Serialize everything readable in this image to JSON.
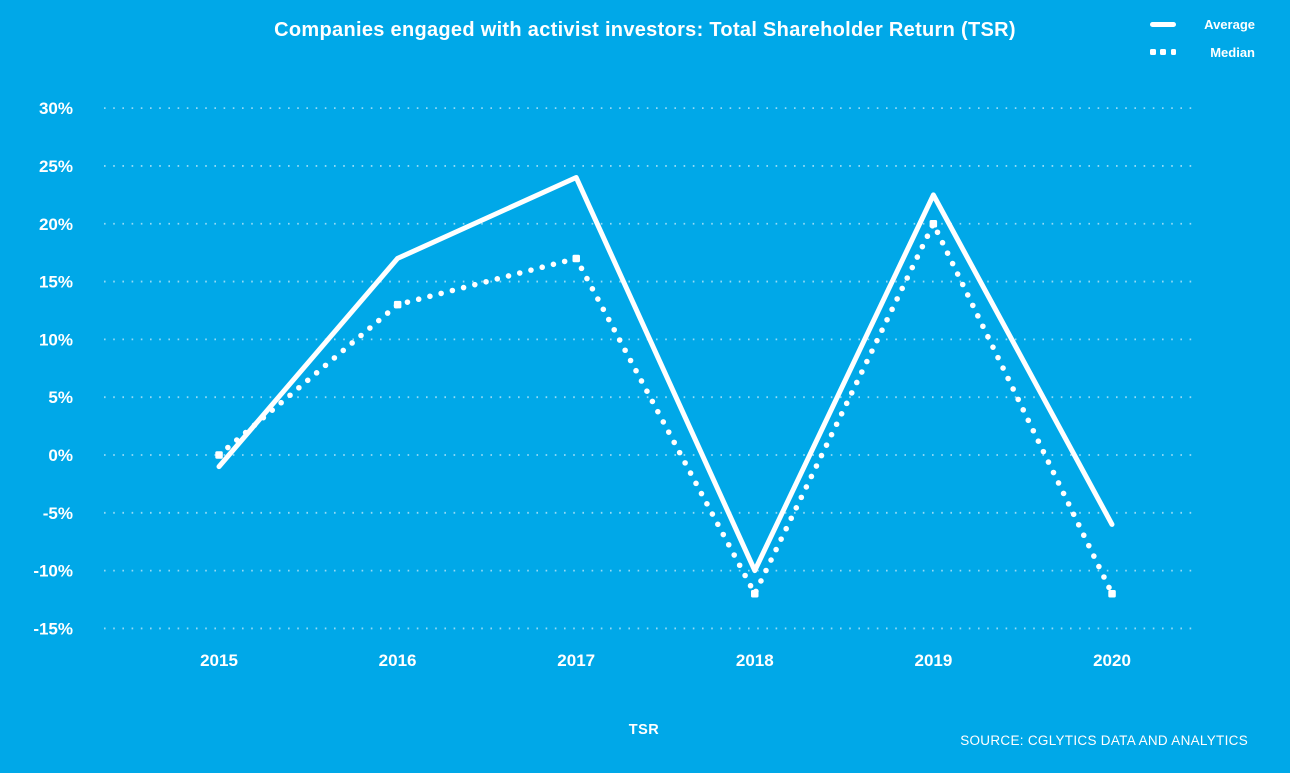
{
  "colors": {
    "background": "#00a8e8",
    "foreground": "#ffffff",
    "gridline": "rgba(255,255,255,0.58)"
  },
  "header": {
    "title": "Companies engaged with activist investors: Total Shareholder Return (TSR)"
  },
  "legend": {
    "position": "top-right",
    "items": [
      {
        "label": "Average",
        "style": "solid"
      },
      {
        "label": "Median",
        "style": "dotted"
      }
    ]
  },
  "footer": {
    "xlabel": "TSR",
    "source": "SOURCE: CGLYTICS DATA AND ANALYTICS"
  },
  "chart_data": {
    "type": "line",
    "title": "Companies engaged with activist investors: Total Shareholder Return (TSR)",
    "categories": [
      "2015",
      "2016",
      "2017",
      "2018",
      "2019",
      "2020"
    ],
    "series": [
      {
        "name": "Average",
        "style": "solid",
        "values": [
          -1,
          17,
          24,
          -10,
          22.5,
          -6
        ]
      },
      {
        "name": "Median",
        "style": "dotted",
        "values": [
          0,
          13,
          17,
          -12,
          20,
          -12
        ]
      }
    ],
    "xlabel": "TSR",
    "ylabel": "",
    "y_ticks": [
      30,
      25,
      20,
      15,
      10,
      5,
      0,
      -5,
      -10,
      -15
    ],
    "y_tick_suffix": "%",
    "ylim": [
      -17.5,
      32.5
    ],
    "grid": "horizontal-dotted",
    "legend_position": "top-right",
    "source": "SOURCE: CGLYTICS DATA AND ANALYTICS"
  }
}
